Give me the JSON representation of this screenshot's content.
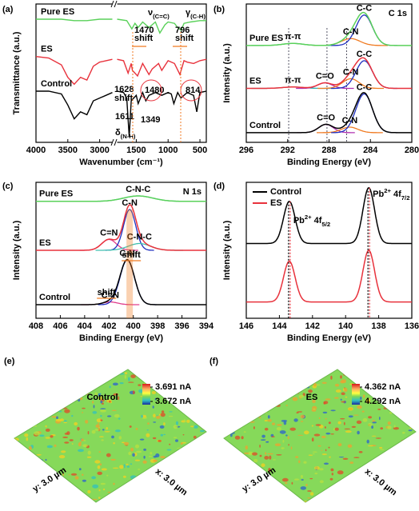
{
  "chart_data": [
    {
      "type": "line",
      "panel": "(a)",
      "xlabel": "Wavenumber (cm⁻¹)",
      "ylabel": "Transmittance (a.u.)",
      "xlim": [
        4000,
        400
      ],
      "xbreak": [
        2800,
        1800
      ],
      "ylim": [
        0,
        1
      ],
      "xticks": [
        4000,
        3500,
        3000,
        1500,
        1000,
        500
      ],
      "series": [
        {
          "name": "Pure ES",
          "color": "#5ad15a",
          "x": [
            4000,
            3600,
            3400,
            3200,
            3000,
            2800,
            1800,
            1650,
            1570,
            1520,
            1470,
            1400,
            1300,
            1200,
            1130,
            1050,
            1000,
            900,
            850,
            796,
            750,
            650,
            500,
            400
          ],
          "values": [
            0.89,
            0.89,
            0.88,
            0.88,
            0.89,
            0.89,
            0.89,
            0.88,
            0.82,
            0.86,
            0.83,
            0.87,
            0.83,
            0.87,
            0.79,
            0.85,
            0.87,
            0.86,
            0.83,
            0.81,
            0.86,
            0.87,
            0.88,
            0.88
          ]
        },
        {
          "name": "ES",
          "color": "#e8323c",
          "x": [
            4000,
            3800,
            3600,
            3500,
            3400,
            3300,
            3200,
            3100,
            3000,
            2900,
            2800,
            1800,
            1700,
            1628,
            1580,
            1560,
            1480,
            1400,
            1300,
            1250,
            1150,
            1100,
            1000,
            900,
            814,
            750,
            700,
            600,
            500,
            400
          ],
          "values": [
            0.62,
            0.61,
            0.56,
            0.47,
            0.42,
            0.47,
            0.45,
            0.55,
            0.58,
            0.59,
            0.6,
            0.6,
            0.59,
            0.5,
            0.57,
            0.52,
            0.48,
            0.57,
            0.49,
            0.53,
            0.57,
            0.52,
            0.59,
            0.57,
            0.49,
            0.59,
            0.58,
            0.57,
            0.59,
            0.6
          ]
        },
        {
          "name": "Control",
          "color": "#000000",
          "x": [
            4000,
            3800,
            3600,
            3500,
            3400,
            3300,
            3200,
            3100,
            3000,
            2900,
            2800,
            1800,
            1700,
            1650,
            1611,
            1580,
            1500,
            1470,
            1400,
            1349,
            1300,
            1200,
            1100,
            1000,
            950,
            910,
            850,
            800,
            700,
            600,
            550,
            500,
            400
          ],
          "values": [
            0.37,
            0.37,
            0.35,
            0.27,
            0.17,
            0.22,
            0.2,
            0.3,
            0.32,
            0.34,
            0.36,
            0.37,
            0.36,
            0.32,
            0.04,
            0.3,
            0.34,
            0.28,
            0.36,
            0.3,
            0.34,
            0.36,
            0.34,
            0.36,
            0.35,
            0.28,
            0.36,
            0.32,
            0.36,
            0.34,
            0.22,
            0.36,
            0.37
          ]
        }
      ],
      "annotations": [
        {
          "symbol": "ν",
          "sub": "(C=C)"
        },
        {
          "symbol": "γ",
          "sub": "(C-H)"
        },
        {
          "text": "1470"
        },
        {
          "text": "796"
        },
        {
          "text": "shift"
        },
        {
          "text": "shift"
        },
        {
          "text": "1628"
        },
        {
          "text": "shift"
        },
        {
          "text": "1480"
        },
        {
          "text": "814"
        },
        {
          "text": "1611"
        },
        {
          "text": "1349"
        },
        {
          "symbol": "δ",
          "sub": "(N-H)"
        }
      ]
    },
    {
      "type": "peaks",
      "panel": "(b)",
      "title": "C 1s",
      "xlabel": "Binding Energy (eV)",
      "ylabel": "Intensity (a.u.)",
      "xlim": [
        296,
        280
      ],
      "ylim": [
        0,
        1
      ],
      "xticks": [
        296,
        292,
        288,
        284,
        280
      ],
      "guides": [
        291.9,
        288.2,
        286.3
      ],
      "samples": [
        {
          "name": "Pure ES",
          "color": "#5ad15a",
          "baseline": 0.7,
          "peaks": [
            {
              "name": "π-π",
              "color": "#30b0b0",
              "center": 291.5,
              "height": 0.015,
              "sigma": 1.0
            },
            {
              "name": "C-N",
              "color": "#f07a20",
              "center": 285.9,
              "height": 0.05,
              "sigma": 0.9
            },
            {
              "name": "C-C",
              "color": "#2030c0",
              "center": 284.6,
              "height": 0.22,
              "sigma": 0.8
            }
          ]
        },
        {
          "name": "ES",
          "color": "#e8323c",
          "baseline": 0.39,
          "peaks": [
            {
              "name": "π-π",
              "color": "#30b0b0",
              "center": 291.5,
              "height": 0.01,
              "sigma": 1.0
            },
            {
              "name": "C=O",
              "color": "#b030b0",
              "center": 288.4,
              "height": 0.04,
              "sigma": 0.7
            },
            {
              "name": "C-N",
              "color": "#f07a20",
              "center": 285.9,
              "height": 0.07,
              "sigma": 0.8
            },
            {
              "name": "C-C",
              "color": "#2030c0",
              "center": 284.6,
              "height": 0.2,
              "sigma": 0.8
            }
          ]
        },
        {
          "name": "Control",
          "color": "#000000",
          "baseline": 0.07,
          "peaks": [
            {
              "name": "C=O",
              "color": "#b030b0",
              "center": 288.3,
              "height": 0.06,
              "sigma": 0.7
            },
            {
              "name": "C-N",
              "color": "#f07a20",
              "center": 286.0,
              "height": 0.04,
              "sigma": 0.8
            },
            {
              "name": "C-C",
              "color": "#2030c0",
              "center": 284.6,
              "height": 0.28,
              "sigma": 0.8
            }
          ]
        }
      ]
    },
    {
      "type": "peaks",
      "panel": "(c)",
      "title": "N 1s",
      "xlabel": "Binding Energy (eV)",
      "ylabel": "Intensity (a.u.)",
      "xlim": [
        408,
        394
      ],
      "ylim": [
        0,
        1
      ],
      "xticks": [
        408,
        406,
        404,
        402,
        400,
        398,
        396,
        394
      ],
      "samples": [
        {
          "name": "Pure ES",
          "color": "#5ad15a",
          "baseline": 0.86,
          "peaks": [
            {
              "name": "C-N-C",
              "color": "#40c0b0",
              "center": 399.6,
              "height": 0.04,
              "sigma": 1.2
            }
          ]
        },
        {
          "name": "ES",
          "color": "#e8323c",
          "baseline": 0.5,
          "peaks": [
            {
              "name": "C=N",
              "color": "#e03c8c",
              "center": 402.0,
              "height": 0.08,
              "sigma": 0.6
            },
            {
              "name": "C-N",
              "color": "#2030c0",
              "center": 400.3,
              "height": 0.3,
              "sigma": 0.5
            },
            {
              "name": "C-N-C",
              "color": "#40c0b0",
              "center": 399.5,
              "height": 0.05,
              "sigma": 0.9
            }
          ]
        },
        {
          "name": "Control",
          "color": "#000000",
          "baseline": 0.1,
          "peaks": [
            {
              "name": "C=N",
              "color": "#e03c8c",
              "center": 401.9,
              "height": 0.02,
              "sigma": 0.6
            },
            {
              "name": "C-N",
              "color": "#2030c0",
              "center": 400.5,
              "height": 0.33,
              "sigma": 0.6
            }
          ]
        }
      ],
      "annotations": [
        {
          "text": "shift"
        },
        {
          "text": "shift"
        }
      ]
    },
    {
      "type": "peaks",
      "panel": "(d)",
      "xlabel": "Binding Energy (eV)",
      "ylabel": "Intensity (a.u.)",
      "xlim": [
        146,
        136
      ],
      "ylim": [
        0,
        1
      ],
      "xticks": [
        146,
        144,
        142,
        140,
        138,
        136
      ],
      "legend": "upper left",
      "samples": [
        {
          "name": "Control",
          "color": "#000000",
          "baseline": 0.55,
          "peaks": [
            {
              "center": 143.4,
              "height": 0.31,
              "sigma": 0.35
            },
            {
              "center": 138.6,
              "height": 0.41,
              "sigma": 0.35
            }
          ]
        },
        {
          "name": "ES",
          "color": "#e8323c",
          "baseline": 0.12,
          "peaks": [
            {
              "center": 143.4,
              "height": 0.3,
              "sigma": 0.35
            },
            {
              "center": 138.6,
              "height": 0.38,
              "sigma": 0.35
            }
          ]
        }
      ],
      "annotations": [
        {
          "text": "Pb",
          "sup": "2+",
          "main": "4f",
          "sub": "5/2"
        },
        {
          "text": "Pb",
          "sup": "2+",
          "main": "4f",
          "sub": "7/2"
        }
      ]
    },
    {
      "type": "map",
      "panel": "(e)",
      "title": "Control",
      "color": "#000000",
      "xlabel": "x: 3.0 µm",
      "ylabel": "y: 3.0 µm",
      "colorbar": [
        {
          "value": 3.691,
          "label": "3.691 nA"
        },
        {
          "value": 3.672,
          "label": "3.672 nA"
        }
      ]
    },
    {
      "type": "map",
      "panel": "(f)",
      "title": "ES",
      "color": "#e8323c",
      "xlabel": "x: 3.0 µm",
      "ylabel": "y: 3.0 µm",
      "colorbar": [
        {
          "value": 4.362,
          "label": "4.362 nA"
        },
        {
          "value": 4.292,
          "label": "4.292 nA"
        }
      ]
    }
  ]
}
